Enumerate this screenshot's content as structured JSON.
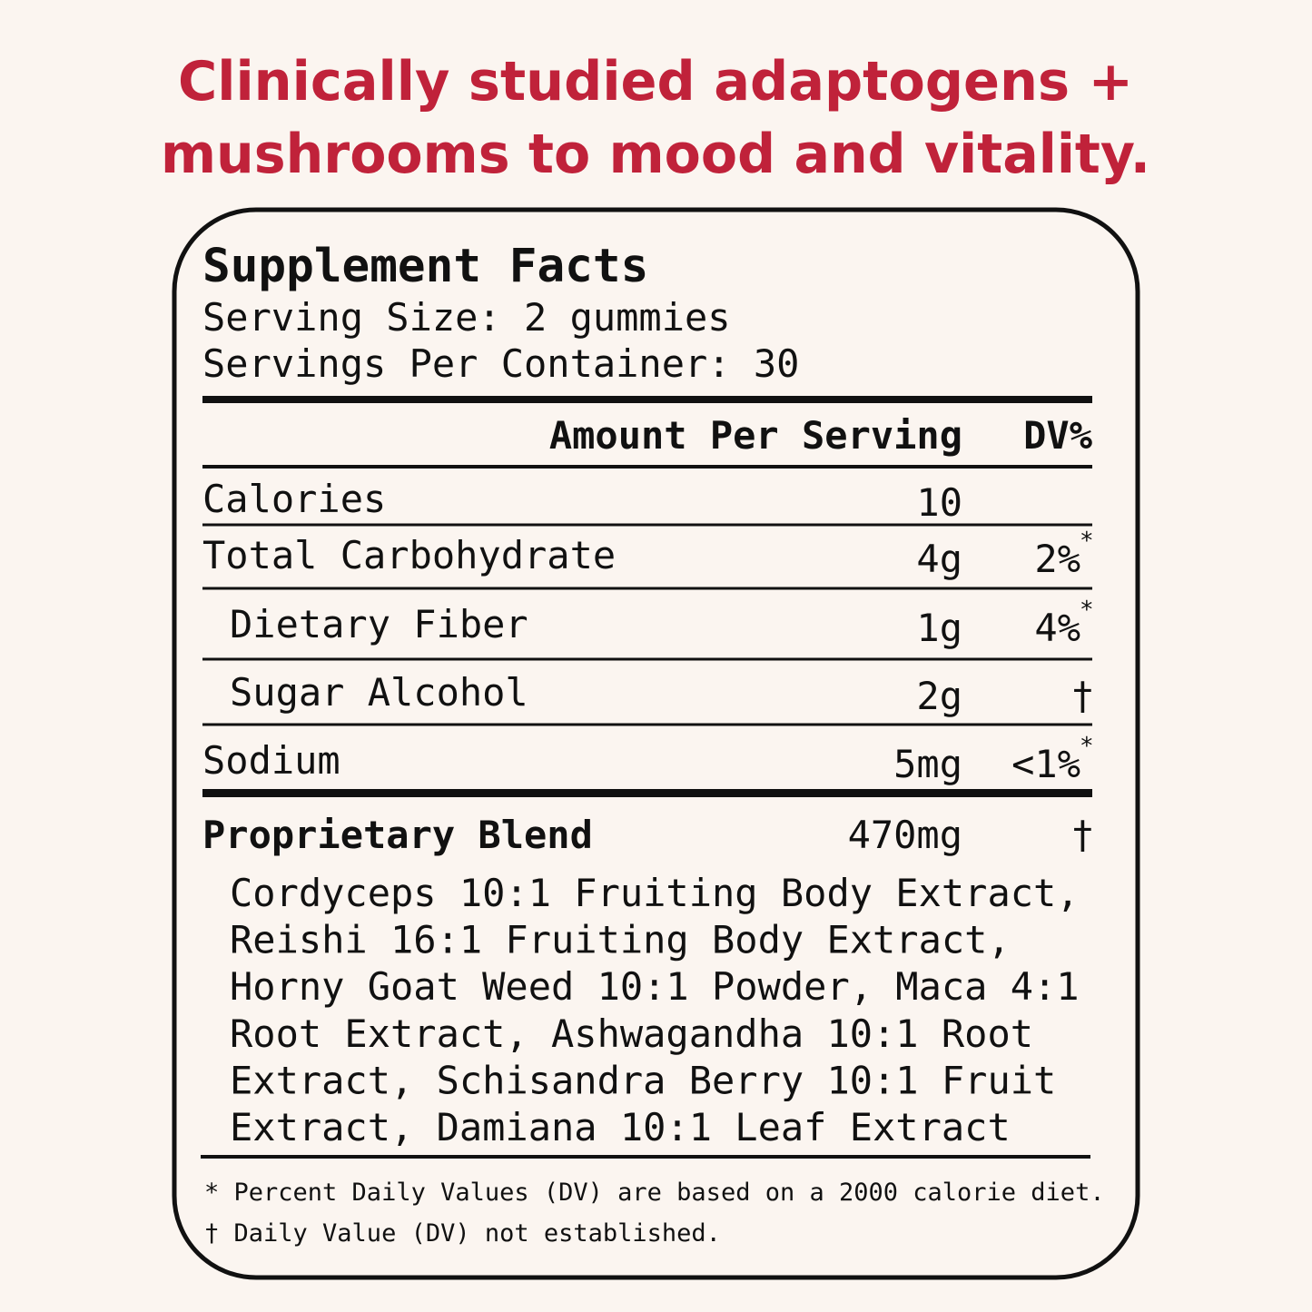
{
  "headline": {
    "lines": [
      "Clinically studied adaptogens +",
      "mushrooms to mood and vitality."
    ]
  },
  "panel": {
    "title": "Supplement Facts",
    "serving_size": "Serving Size: 2 gummies",
    "servings_per_container": "Servings Per Container: 30",
    "header": {
      "amount": "Amount Per Serving",
      "dv": "DV%"
    },
    "rows": [
      {
        "name": "Calories",
        "amount": "10"
      },
      {
        "name": "Total Carbohydrate",
        "amount": "4g",
        "dv": "2%",
        "dv_note": "*"
      },
      {
        "name": "Dietary Fiber",
        "amount": "1g",
        "dv": "4%",
        "dv_note": "*"
      },
      {
        "name": "Sugar Alcohol",
        "amount": "2g",
        "dv": "†"
      },
      {
        "name": "Sodium",
        "amount": "5mg",
        "dv": "<1%",
        "dv_note": "*"
      }
    ],
    "blend": {
      "name": "Proprietary Blend",
      "amount": "470mg",
      "dv": "†",
      "ingredients": [
        "Cordyceps 10:1 Fruiting Body Extract,",
        "Reishi 16:1 Fruiting Body Extract,",
        "Horny Goat Weed 10:1 Powder, Maca 4:1",
        "Root Extract, Ashwagandha 10:1 Root",
        "Extract, Schisandra Berry 10:1 Fruit",
        "Extract, Damiana 10:1 Leaf Extract"
      ]
    },
    "footnotes": [
      "* Percent Daily Values (DV) are based on a 2000 calorie diet.",
      "† Daily Value (DV) not established."
    ]
  }
}
